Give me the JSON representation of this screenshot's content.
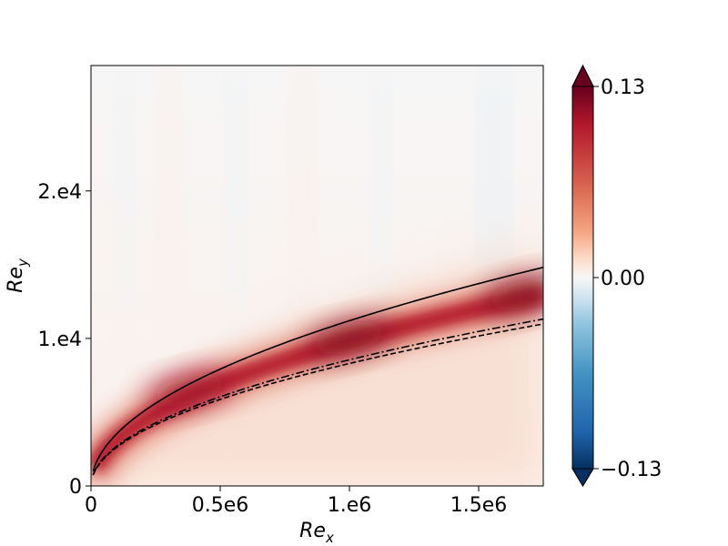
{
  "chart_data": {
    "type": "heatmap",
    "title": "",
    "xlabel": "Re",
    "xlabel_sub": "x",
    "ylabel": "Re",
    "ylabel_sub": "y",
    "xlim": [
      0,
      1750000
    ],
    "ylim": [
      0,
      28500
    ],
    "x_ticks": [
      {
        "value": 0,
        "label": "0"
      },
      {
        "value": 500000,
        "label": "0.5e6"
      },
      {
        "value": 1000000,
        "label": "1.e6"
      },
      {
        "value": 1500000,
        "label": "1.5e6"
      }
    ],
    "y_ticks": [
      {
        "value": 0,
        "label": "0"
      },
      {
        "value": 10000,
        "label": "1.e4"
      },
      {
        "value": 20000,
        "label": "2.e4"
      }
    ],
    "colorbar": {
      "colormap": "RdBu_r",
      "range": [
        -0.13,
        0.13
      ],
      "extend": "both",
      "ticks": [
        {
          "value": 0.13,
          "label": "0.13"
        },
        {
          "value": 0.0,
          "label": "0.00"
        },
        {
          "value": -0.13,
          "label": "−0.13"
        }
      ]
    },
    "curves": [
      {
        "style": "solid",
        "coef": 11.2
      },
      {
        "style": "dashdot",
        "coef": 8.55
      },
      {
        "style": "dashed",
        "coef": 8.3
      }
    ],
    "field_peaks": [
      {
        "x": 380000,
        "y": 6500,
        "value": 0.1
      },
      {
        "x": 1000000,
        "y": 10000,
        "value": 0.13
      },
      {
        "x": 1680000,
        "y": 13000,
        "value": 0.12
      }
    ]
  }
}
